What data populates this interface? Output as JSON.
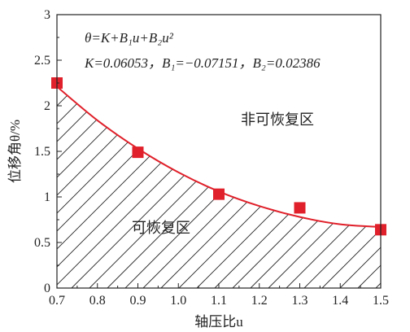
{
  "chart_data": {
    "type": "scatter",
    "xlabel": "轴压比u",
    "ylabel": "位移角θ/%",
    "xlim": [
      0.7,
      1.5
    ],
    "ylim": [
      0,
      3
    ],
    "x_ticks": [
      "0.7",
      "0.8",
      "0.9",
      "1.0",
      "1.1",
      "1.2",
      "1.3",
      "1.4",
      "1.5"
    ],
    "y_ticks": [
      "0",
      "0.5",
      "1",
      "1.5",
      "2",
      "2.5",
      "3"
    ],
    "grid": false,
    "annotations": {
      "equation": "θ=K+B₁u+B₂u²",
      "coefficients": "K=0.06053，B₁=−0.07151，B₂=0.02386",
      "region_upper": "非可恢复区",
      "region_lower": "可恢复区"
    },
    "series": [
      {
        "kind": "points",
        "x": [
          0.7,
          0.9,
          1.1,
          1.3,
          1.5
        ],
        "y": [
          2.25,
          1.49,
          1.03,
          0.88,
          0.64
        ]
      },
      {
        "kind": "fitted-curve",
        "x": [
          0.7,
          0.8,
          0.9,
          1.0,
          1.1,
          1.2,
          1.3,
          1.4,
          1.5
        ],
        "y": [
          2.21,
          1.84,
          1.53,
          1.27,
          1.06,
          0.9,
          0.78,
          0.7,
          0.67
        ]
      }
    ],
    "colors": {
      "marker": "#e0202a",
      "curve": "#e0202a",
      "axis": "#222222",
      "hatch": "#222222"
    }
  }
}
